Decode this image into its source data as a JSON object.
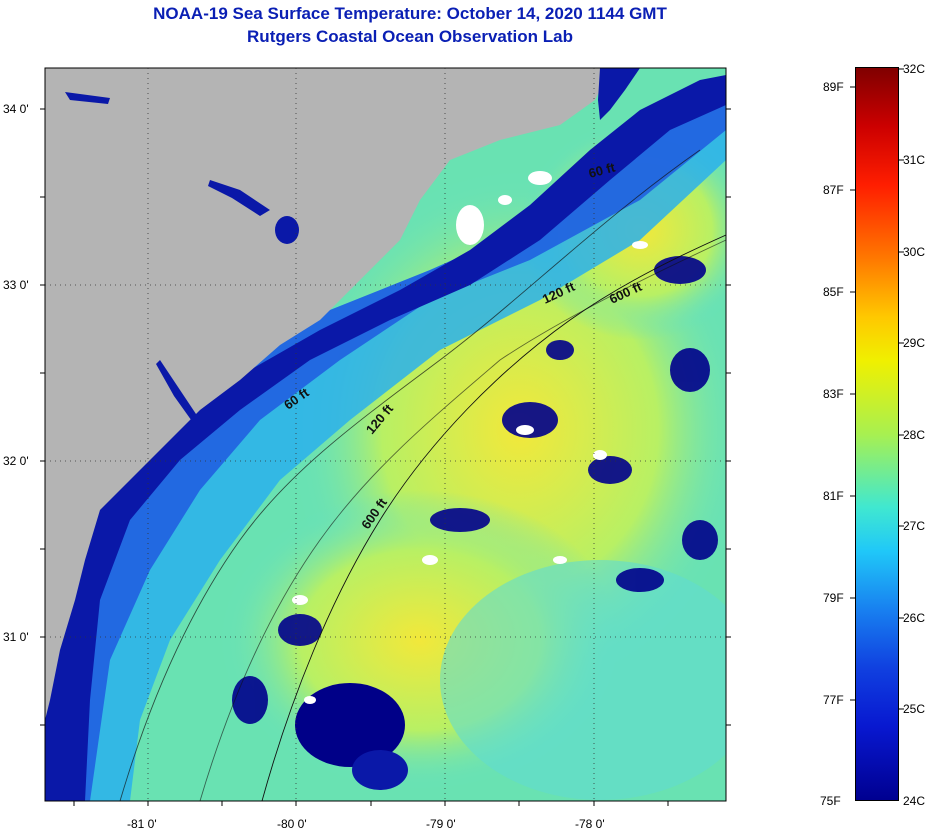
{
  "title": {
    "line1": "NOAA-19 Sea Surface Temperature:  October 14, 2020 1144 GMT",
    "line2": "Rutgers Coastal Ocean Observation Lab"
  },
  "map": {
    "lat_labels": [
      "34 0'",
      "33 0'",
      "32 0'",
      "31 0'"
    ],
    "lon_labels": [
      "-81 0'",
      "-80 0'",
      "-79 0'",
      "-78 0'"
    ],
    "contours": [
      "60 ft",
      "120 ft",
      "600 ft",
      "60 ft",
      "120 ft",
      "600 ft"
    ],
    "colors": {
      "land": "#b4b4b4",
      "cold": "#00008c",
      "cool": "#1a3cdc",
      "mid": "#2c8cf0",
      "warm": "#40d8e8",
      "green": "#a0f070",
      "yellow": "#f0e838",
      "cloud": "#ffffff"
    }
  },
  "colorbar": {
    "fahrenheit": [
      "89F",
      "87F",
      "85F",
      "83F",
      "81F",
      "79F",
      "77F",
      "75F"
    ],
    "celsius": [
      "32C",
      "31C",
      "30C",
      "29C",
      "28C",
      "27C",
      "26C",
      "25C",
      "24C"
    ],
    "range_c": [
      24,
      32
    ]
  }
}
